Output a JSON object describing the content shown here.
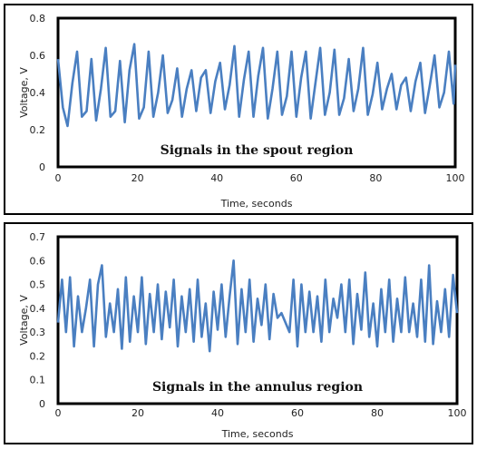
{
  "chart_data": [
    {
      "type": "line",
      "title": "",
      "annotation": "Signals in the spout region",
      "xlabel": "Time, seconds",
      "ylabel": "Voltage, V",
      "xlim": [
        0,
        100
      ],
      "ylim": [
        0,
        0.8
      ],
      "xticks": [
        0,
        20,
        40,
        60,
        80,
        100
      ],
      "yticks": [
        0,
        0.2,
        0.4,
        0.6,
        0.8
      ],
      "ytick_labels": [
        "0",
        "0.2",
        "0.4",
        "0.6",
        "0.8"
      ],
      "grid": false,
      "line_color": "#4a7fc1",
      "series": [
        {
          "x": [
            0,
            1.2,
            2.4,
            3.6,
            4.8,
            6,
            7.2,
            8.4,
            9.6,
            10.8,
            12,
            13.2,
            14.4,
            15.6,
            16.8,
            18,
            19.2,
            20.4,
            21.6,
            22.8,
            24,
            25.2,
            26.4,
            27.6,
            28.8,
            30,
            31.2,
            32.4,
            33.6,
            34.8,
            36,
            37.2,
            38.4,
            39.6,
            40.8,
            42,
            43.2,
            44.4,
            45.6,
            46.8,
            48,
            49.2,
            50.4,
            51.6,
            52.8,
            54,
            55.2,
            56.4,
            57.6,
            58.8,
            60,
            61.2,
            62.4,
            63.6,
            64.8,
            66,
            67.2,
            68.4,
            69.6,
            70.8,
            72,
            73.2,
            74.4,
            75.6,
            76.8,
            78,
            79.2,
            80.4,
            81.6,
            82.8,
            84,
            85.2,
            86.4,
            87.6,
            88.8,
            90,
            91.2,
            92.4,
            93.6,
            94.8,
            96,
            97.2,
            98.4,
            99.6,
            100
          ],
          "values": [
            0.58,
            0.32,
            0.22,
            0.45,
            0.62,
            0.27,
            0.3,
            0.58,
            0.25,
            0.42,
            0.64,
            0.27,
            0.3,
            0.57,
            0.24,
            0.52,
            0.66,
            0.26,
            0.32,
            0.62,
            0.27,
            0.4,
            0.6,
            0.29,
            0.36,
            0.53,
            0.27,
            0.42,
            0.52,
            0.3,
            0.48,
            0.52,
            0.29,
            0.46,
            0.56,
            0.31,
            0.44,
            0.65,
            0.27,
            0.47,
            0.62,
            0.27,
            0.49,
            0.64,
            0.26,
            0.42,
            0.62,
            0.28,
            0.38,
            0.62,
            0.27,
            0.48,
            0.62,
            0.26,
            0.45,
            0.64,
            0.28,
            0.4,
            0.63,
            0.28,
            0.37,
            0.58,
            0.3,
            0.42,
            0.64,
            0.28,
            0.39,
            0.56,
            0.31,
            0.42,
            0.5,
            0.31,
            0.44,
            0.48,
            0.3,
            0.46,
            0.56,
            0.29,
            0.44,
            0.6,
            0.32,
            0.4,
            0.62,
            0.34,
            0.55
          ]
        }
      ]
    },
    {
      "type": "line",
      "title": "",
      "annotation": "Signals in the annulus region",
      "xlabel": "Time, seconds",
      "ylabel": "Voltage, V",
      "xlim": [
        0,
        100
      ],
      "ylim": [
        0,
        0.7
      ],
      "xticks": [
        0,
        20,
        40,
        60,
        80,
        100
      ],
      "yticks": [
        0,
        0.1,
        0.2,
        0.3,
        0.4,
        0.5,
        0.6,
        0.7
      ],
      "ytick_labels": [
        "0",
        "0.1",
        "0.2",
        "0.3",
        "0.4",
        "0.5",
        "0.6",
        "0.7"
      ],
      "grid": false,
      "line_color": "#4a7fc1",
      "series": [
        {
          "x": [
            0,
            1,
            2,
            3,
            4,
            5,
            6,
            7,
            8,
            9,
            10,
            11,
            12,
            13,
            14,
            15,
            16,
            17,
            18,
            19,
            20,
            21,
            22,
            23,
            24,
            25,
            26,
            27,
            28,
            29,
            30,
            31,
            32,
            33,
            34,
            35,
            36,
            37,
            38,
            39,
            40,
            41,
            42,
            43,
            44,
            45,
            46,
            47,
            48,
            49,
            50,
            51,
            52,
            53,
            54,
            55,
            56,
            57,
            58,
            59,
            60,
            61,
            62,
            63,
            64,
            65,
            66,
            67,
            68,
            69,
            70,
            71,
            72,
            73,
            74,
            75,
            76,
            77,
            78,
            79,
            80,
            81,
            82,
            83,
            84,
            85,
            86,
            87,
            88,
            89,
            90,
            91,
            92,
            93,
            94,
            95,
            96,
            97,
            98,
            99,
            100
          ],
          "values": [
            0.34,
            0.52,
            0.3,
            0.53,
            0.24,
            0.45,
            0.3,
            0.4,
            0.52,
            0.24,
            0.5,
            0.58,
            0.28,
            0.42,
            0.3,
            0.48,
            0.23,
            0.53,
            0.26,
            0.45,
            0.3,
            0.53,
            0.25,
            0.46,
            0.3,
            0.5,
            0.27,
            0.47,
            0.32,
            0.52,
            0.24,
            0.45,
            0.3,
            0.48,
            0.26,
            0.52,
            0.28,
            0.42,
            0.22,
            0.47,
            0.31,
            0.5,
            0.28,
            0.45,
            0.6,
            0.25,
            0.48,
            0.3,
            0.52,
            0.26,
            0.44,
            0.33,
            0.5,
            0.27,
            0.46,
            0.36,
            0.38,
            0.34,
            0.3,
            0.52,
            0.24,
            0.5,
            0.3,
            0.47,
            0.3,
            0.45,
            0.26,
            0.52,
            0.3,
            0.44,
            0.36,
            0.5,
            0.3,
            0.52,
            0.25,
            0.46,
            0.31,
            0.55,
            0.28,
            0.42,
            0.24,
            0.48,
            0.3,
            0.52,
            0.26,
            0.44,
            0.3,
            0.53,
            0.3,
            0.42,
            0.28,
            0.52,
            0.26,
            0.58,
            0.25,
            0.43,
            0.3,
            0.48,
            0.28,
            0.54,
            0.38
          ]
        }
      ]
    }
  ]
}
